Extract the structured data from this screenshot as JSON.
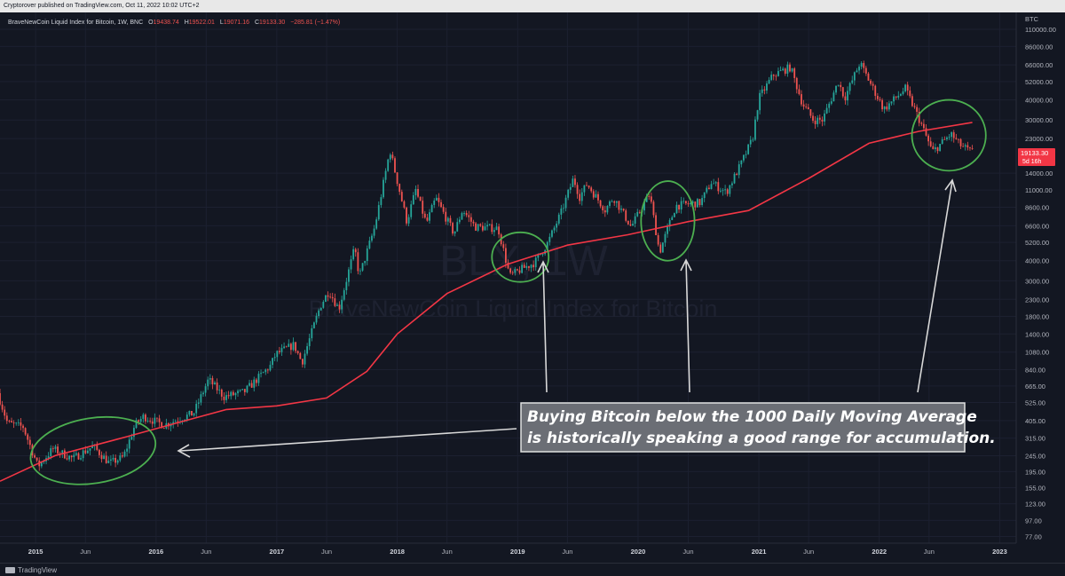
{
  "publisher": "Cryptorover published on TradingView.com, Oct 11, 2022 10:02 UTC+2",
  "legend": {
    "symbol": "BraveNewCoin Liquid Index for Bitcoin, 1W, BNC",
    "o_label": "O",
    "o": "19438.74",
    "h_label": "H",
    "h": "19522.01",
    "l_label": "L",
    "l": "19071.16",
    "c_label": "C",
    "c": "19133.30",
    "change": "−285.81 (−1.47%)"
  },
  "watermark": {
    "ticker": "BLX, 1W",
    "name": "BraveNewCoin Liquid Index for Bitcoin"
  },
  "price_tag": {
    "value": "19133.30",
    "countdown": "5d 16h"
  },
  "annotation": [
    "Buying Bitcoin below the 1000 Daily Moving Average",
    "is historically speaking a good range for accumulation."
  ],
  "footer": {
    "brand": "TradingView"
  },
  "colors": {
    "up": "#26a69a",
    "down": "#ef5350",
    "ma": "#f23645",
    "circle": "#4caf50",
    "bg": "#131722"
  },
  "chart_data": {
    "type": "candlestick",
    "title": "BraveNewCoin Liquid Index for Bitcoin, 1W, BNC",
    "y_unit": "BTC",
    "y_scale": "log",
    "ylim": [
      70,
      140000
    ],
    "xlim": [
      "2014-09-15",
      "2023-02-20"
    ],
    "y_ticks": [
      110000,
      86000,
      66000,
      52000,
      40000,
      30000,
      23000,
      14000,
      11000,
      8600,
      6600,
      5200,
      4000,
      3000,
      2300,
      1800,
      1400,
      1080,
      840,
      665,
      525,
      405,
      315,
      245,
      195,
      155,
      123,
      97,
      77
    ],
    "x_ticks": [
      {
        "label": "2015",
        "date": "2015-01-01"
      },
      {
        "label": "Jun",
        "date": "2015-06-01"
      },
      {
        "label": "2016",
        "date": "2016-01-01"
      },
      {
        "label": "Jun",
        "date": "2016-06-01"
      },
      {
        "label": "2017",
        "date": "2017-01-01"
      },
      {
        "label": "Jun",
        "date": "2017-06-01"
      },
      {
        "label": "2018",
        "date": "2018-01-01"
      },
      {
        "label": "Jun",
        "date": "2018-06-01"
      },
      {
        "label": "2019",
        "date": "2019-01-01"
      },
      {
        "label": "Jun",
        "date": "2019-06-01"
      },
      {
        "label": "2020",
        "date": "2020-01-01"
      },
      {
        "label": "Jun",
        "date": "2020-06-01"
      },
      {
        "label": "2021",
        "date": "2021-01-01"
      },
      {
        "label": "Jun",
        "date": "2021-06-01"
      },
      {
        "label": "2022",
        "date": "2022-01-01"
      },
      {
        "label": "Jun",
        "date": "2022-06-01"
      },
      {
        "label": "2023",
        "date": "2023-01-01"
      }
    ],
    "price_path": [
      [
        "2014-09-15",
        600
      ],
      [
        "2014-10-15",
        390
      ],
      [
        "2014-12-01",
        370
      ],
      [
        "2015-01-15",
        210
      ],
      [
        "2015-03-01",
        270
      ],
      [
        "2015-05-01",
        235
      ],
      [
        "2015-07-01",
        280
      ],
      [
        "2015-08-20",
        220
      ],
      [
        "2015-10-01",
        240
      ],
      [
        "2015-11-05",
        380
      ],
      [
        "2015-12-01",
        430
      ],
      [
        "2016-02-01",
        380
      ],
      [
        "2016-05-01",
        450
      ],
      [
        "2016-06-15",
        730
      ],
      [
        "2016-08-01",
        570
      ],
      [
        "2016-10-01",
        610
      ],
      [
        "2016-12-20",
        890
      ],
      [
        "2017-01-05",
        1050
      ],
      [
        "2017-03-01",
        1200
      ],
      [
        "2017-03-25",
        930
      ],
      [
        "2017-05-20",
        2100
      ],
      [
        "2017-06-15",
        2600
      ],
      [
        "2017-07-15",
        2000
      ],
      [
        "2017-09-01",
        4800
      ],
      [
        "2017-09-15",
        3200
      ],
      [
        "2017-11-01",
        6500
      ],
      [
        "2017-12-17",
        19500
      ],
      [
        "2018-02-06",
        7000
      ],
      [
        "2018-03-05",
        11000
      ],
      [
        "2018-04-06",
        6800
      ],
      [
        "2018-05-05",
        9800
      ],
      [
        "2018-06-29",
        5900
      ],
      [
        "2018-07-25",
        8300
      ],
      [
        "2018-09-01",
        6500
      ],
      [
        "2018-11-10",
        6350
      ],
      [
        "2018-12-15",
        3200
      ],
      [
        "2019-01-20",
        3550
      ],
      [
        "2019-03-01",
        3900
      ],
      [
        "2019-04-10",
        5200
      ],
      [
        "2019-05-20",
        8000
      ],
      [
        "2019-06-26",
        13000
      ],
      [
        "2019-07-15",
        10000
      ],
      [
        "2019-08-06",
        12000
      ],
      [
        "2019-09-30",
        8300
      ],
      [
        "2019-10-26",
        9900
      ],
      [
        "2019-12-18",
        6500
      ],
      [
        "2020-02-12",
        10400
      ],
      [
        "2020-03-13",
        4500
      ],
      [
        "2020-05-01",
        8800
      ],
      [
        "2020-07-15",
        9200
      ],
      [
        "2020-08-17",
        12300
      ],
      [
        "2020-10-01",
        10600
      ],
      [
        "2020-11-15",
        16000
      ],
      [
        "2020-12-20",
        23000
      ],
      [
        "2021-01-08",
        41000
      ],
      [
        "2021-02-20",
        57000
      ],
      [
        "2021-04-14",
        64000
      ],
      [
        "2021-05-20",
        38000
      ],
      [
        "2021-06-22",
        30000
      ],
      [
        "2021-07-20",
        30000
      ],
      [
        "2021-09-06",
        52000
      ],
      [
        "2021-09-25",
        41000
      ],
      [
        "2021-11-10",
        68000
      ],
      [
        "2022-01-22",
        35000
      ],
      [
        "2022-03-28",
        47000
      ],
      [
        "2022-05-10",
        30000
      ],
      [
        "2022-06-18",
        19000
      ],
      [
        "2022-08-13",
        24500
      ],
      [
        "2022-09-10",
        21000
      ],
      [
        "2022-10-10",
        19133
      ]
    ],
    "ma_series": {
      "name": "1000 Daily Moving Average",
      "points": [
        [
          "2014-09-15",
          170
        ],
        [
          "2015-03-01",
          245
        ],
        [
          "2015-10-01",
          320
        ],
        [
          "2016-03-01",
          390
        ],
        [
          "2016-08-01",
          475
        ],
        [
          "2017-01-01",
          500
        ],
        [
          "2017-06-01",
          560
        ],
        [
          "2017-10-01",
          820
        ],
        [
          "2018-01-01",
          1400
        ],
        [
          "2018-06-01",
          2500
        ],
        [
          "2018-12-01",
          3800
        ],
        [
          "2019-06-01",
          5000
        ],
        [
          "2019-12-01",
          5800
        ],
        [
          "2020-06-01",
          7000
        ],
        [
          "2020-12-01",
          8200
        ],
        [
          "2021-06-01",
          13000
        ],
        [
          "2021-12-01",
          21500
        ],
        [
          "2022-05-01",
          25500
        ],
        [
          "2022-10-10",
          29000
        ]
      ]
    },
    "highlight_zones": [
      {
        "start": "2014-12-15",
        "end": "2016-01-01",
        "low": 165,
        "high": 420
      },
      {
        "start": "2018-10-15",
        "end": "2019-04-05",
        "low": 2950,
        "high": 6000
      },
      {
        "start": "2020-01-10",
        "end": "2020-06-20",
        "low": 4000,
        "high": 12500
      },
      {
        "start": "2022-04-10",
        "end": "2022-11-20",
        "low": 14500,
        "high": 40000
      }
    ]
  }
}
